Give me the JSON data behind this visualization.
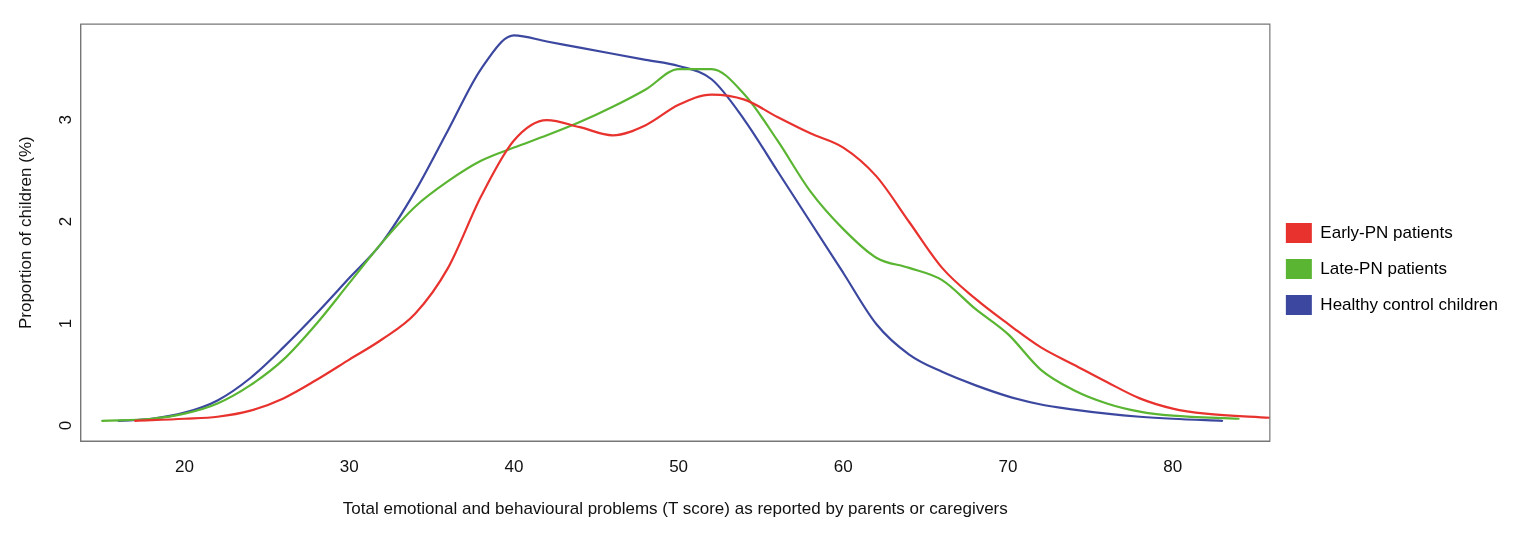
{
  "chart_data": {
    "type": "line",
    "xlabel": "Total emotional and behavioural problems (T score) as reported by parents or caregivers",
    "ylabel": "Proportion of children (%)",
    "xlim": [
      13.7,
      85.9
    ],
    "xticks": [
      20,
      30,
      40,
      50,
      60,
      70,
      80
    ],
    "ylim": [
      -0.2,
      3.89
    ],
    "yticks": [
      0,
      1,
      2,
      3
    ],
    "grid": false,
    "legend": "right",
    "marker": "none",
    "line_style": "solid",
    "series": [
      {
        "name": "Early-PN patients",
        "color": "#e8322e",
        "x": [
          17,
          20,
          22,
          24,
          26,
          28,
          30,
          32,
          34,
          36,
          38,
          40,
          42,
          44,
          46,
          48,
          50,
          52,
          54,
          56,
          58,
          60,
          62,
          64,
          66,
          68,
          70,
          72,
          74,
          76,
          78,
          80,
          82,
          85.9
        ],
        "values": [
          0,
          0.02,
          0.04,
          0.1,
          0.22,
          0.4,
          0.6,
          0.8,
          1.05,
          1.5,
          2.2,
          2.75,
          2.95,
          2.88,
          2.8,
          2.9,
          3.1,
          3.2,
          3.15,
          2.98,
          2.82,
          2.68,
          2.4,
          1.95,
          1.5,
          1.2,
          0.95,
          0.72,
          0.55,
          0.38,
          0.22,
          0.12,
          0.07,
          0.03
        ]
      },
      {
        "name": "Late-PN patients",
        "color": "#5ab532",
        "x": [
          15,
          18,
          20,
          22,
          24,
          26,
          28,
          30,
          32,
          34,
          36,
          38,
          40,
          42,
          44,
          46,
          48,
          50,
          52,
          54,
          56,
          58,
          60,
          62,
          64,
          66,
          68,
          70,
          72,
          74,
          76,
          78,
          80,
          84
        ],
        "values": [
          0,
          0.02,
          0.07,
          0.17,
          0.35,
          0.6,
          0.95,
          1.35,
          1.75,
          2.1,
          2.35,
          2.55,
          2.68,
          2.8,
          2.93,
          3.08,
          3.25,
          3.45,
          3.45,
          3.2,
          2.75,
          2.25,
          1.88,
          1.6,
          1.5,
          1.38,
          1.1,
          0.85,
          0.5,
          0.3,
          0.17,
          0.09,
          0.05,
          0.02
        ]
      },
      {
        "name": "Healthy control children",
        "color": "#3c48a0",
        "x": [
          16,
          18,
          20,
          22,
          24,
          26,
          28,
          30,
          32,
          34,
          36,
          38,
          40,
          42,
          44,
          46,
          48,
          50,
          52,
          54,
          56,
          58,
          60,
          62,
          64,
          66,
          68,
          70,
          72,
          74,
          76,
          78,
          80,
          83
        ],
        "values": [
          0,
          0.02,
          0.08,
          0.2,
          0.42,
          0.72,
          1.05,
          1.4,
          1.75,
          2.25,
          2.85,
          3.45,
          3.78,
          3.72,
          3.66,
          3.6,
          3.54,
          3.48,
          3.35,
          2.95,
          2.45,
          1.95,
          1.45,
          0.95,
          0.65,
          0.48,
          0.35,
          0.24,
          0.16,
          0.11,
          0.07,
          0.04,
          0.02,
          0
        ]
      }
    ]
  }
}
